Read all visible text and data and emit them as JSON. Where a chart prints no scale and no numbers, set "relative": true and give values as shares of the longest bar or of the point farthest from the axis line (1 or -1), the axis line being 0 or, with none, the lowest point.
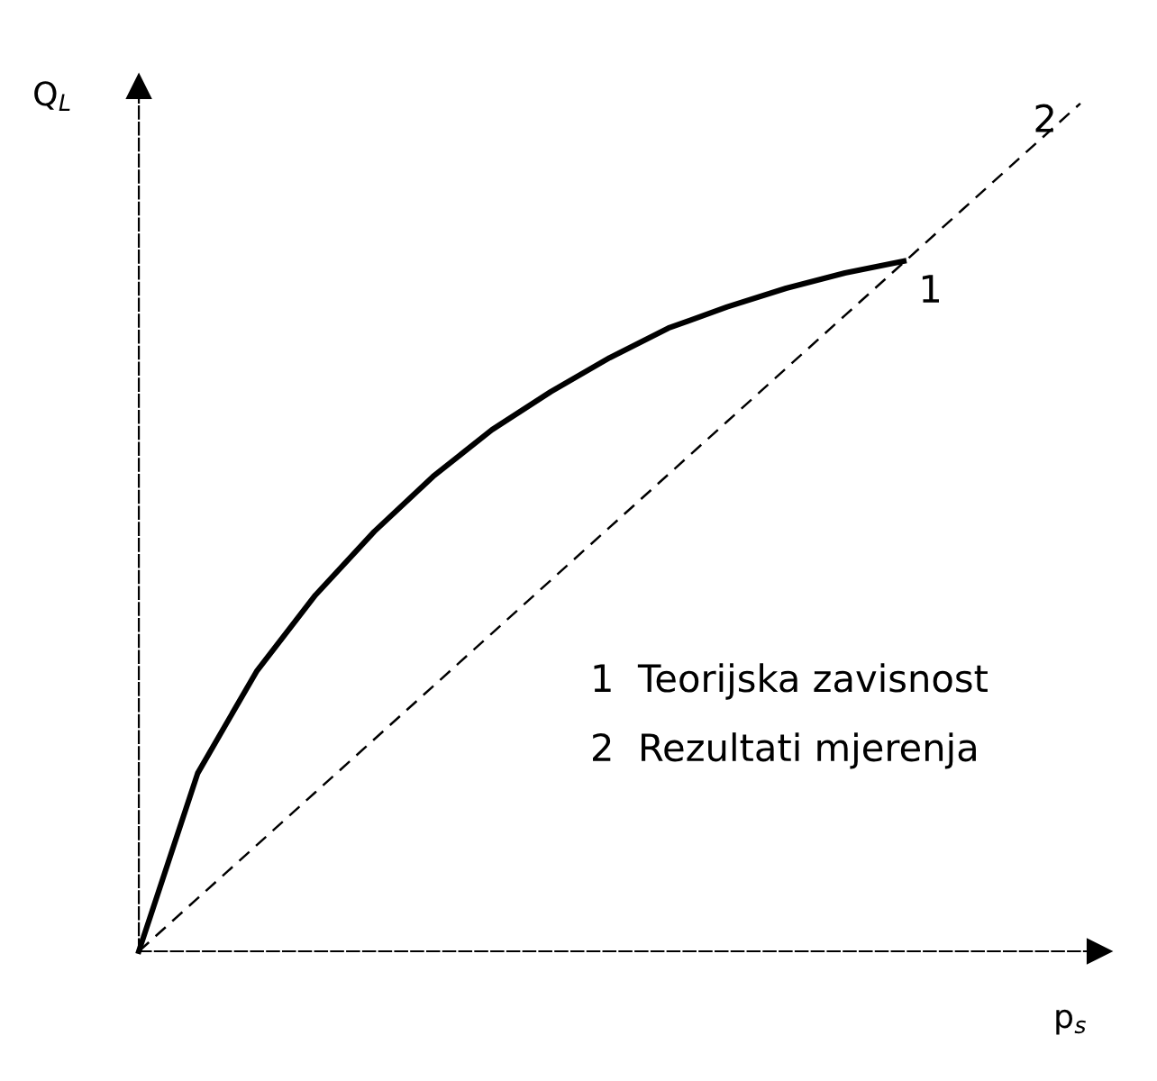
{
  "chart_data": {
    "type": "line",
    "relative": true,
    "xlabel": "p$_{s}$",
    "ylabel": "Q$_{L}$",
    "legend": false,
    "marker": "none",
    "categories": [
      null,
      null,
      null,
      null,
      null,
      null,
      null,
      null,
      null,
      null,
      null,
      null,
      null,
      null,
      null,
      null,
      null
    ],
    "series": [
      {
        "name": "1",
        "color": "#000000",
        "line_style": "solid",
        "values": [
          0,
          0.21,
          0.33,
          0.42,
          0.495,
          0.56,
          0.615,
          0.66,
          0.7,
          0.735,
          0.76,
          0.782,
          0.8,
          0.814,
          null,
          null,
          null
        ]
      },
      {
        "name": "2",
        "color": "#000000",
        "line_style": "dashed",
        "values": [
          0,
          0.0625,
          0.125,
          0.1875,
          0.25,
          0.3125,
          0.375,
          0.4375,
          0.5,
          0.5625,
          0.625,
          0.6875,
          0.75,
          0.8125,
          0.875,
          0.9375,
          1
        ]
      }
    ],
    "annotations": [
      "1  Teorijska zavisnost",
      "2  Rezultati mjerenja"
    ]
  }
}
